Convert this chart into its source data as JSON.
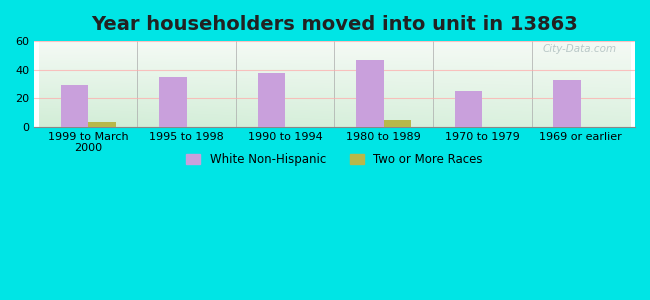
{
  "title": "Year householders moved into unit in 13863",
  "categories": [
    "1999 to March\n2000",
    "1995 to 1998",
    "1990 to 1994",
    "1980 to 1989",
    "1970 to 1979",
    "1969 or earlier"
  ],
  "white_non_hispanic": [
    29,
    35,
    38,
    47,
    25,
    33
  ],
  "two_or_more_races": [
    3.5,
    0,
    0,
    5,
    0,
    0
  ],
  "bar_width": 0.28,
  "ylim": [
    0,
    60
  ],
  "yticks": [
    0,
    20,
    40,
    60
  ],
  "purple_color": "#c9a0dc",
  "olive_color": "#b8b84a",
  "bg_outer": "#00e5e5",
  "grid_color": "#ffaaaa",
  "legend_labels": [
    "White Non-Hispanic",
    "Two or More Races"
  ],
  "watermark": "City-Data.com",
  "title_fontsize": 14,
  "tick_fontsize": 8
}
